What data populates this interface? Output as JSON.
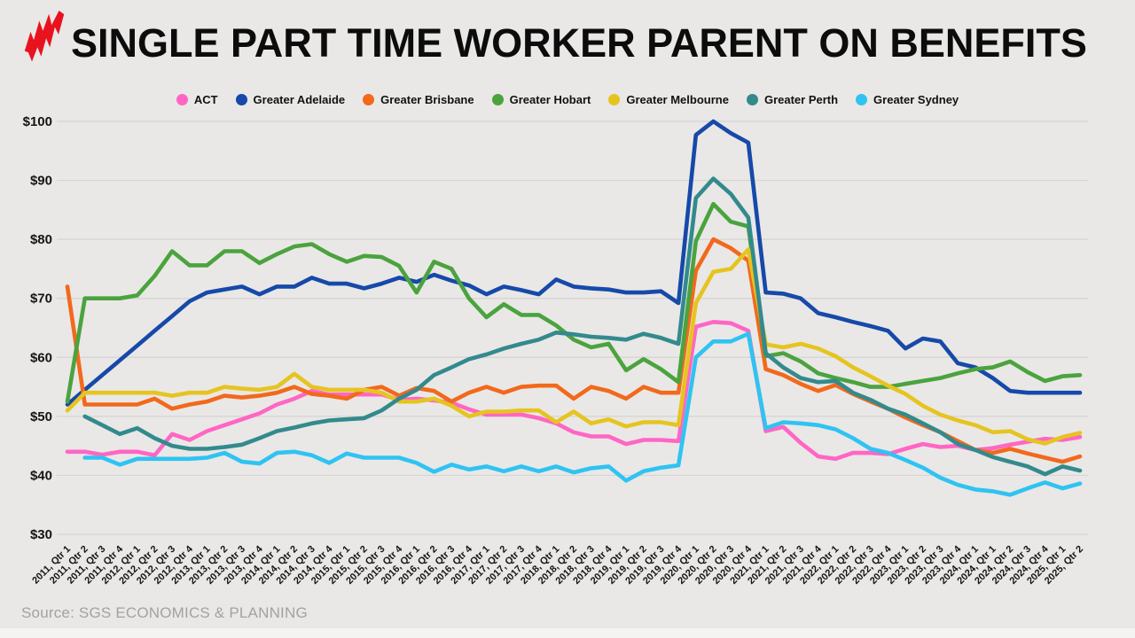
{
  "header": {
    "title": "SINGLE PART TIME WORKER PARENT ON BENEFITS"
  },
  "source": {
    "text": "Source: SGS ECONOMICS & PLANNING"
  },
  "colors": {
    "background": "#e9e8e6",
    "grid": "#d5d4d2",
    "axis_text": "#141414",
    "title_text": "#0c0c0c",
    "source_text": "#a3a2a0",
    "logo_red": "#e8131e",
    "bottom_strip": "#f4f3f1"
  },
  "chart_data": {
    "type": "line",
    "title": "SINGLE PART TIME WORKER PARENT ON BENEFITS",
    "xlabel": "",
    "ylabel": "",
    "ylim": [
      30,
      100
    ],
    "yticks": [
      30,
      40,
      50,
      60,
      70,
      80,
      90,
      100
    ],
    "ytick_format": "$",
    "grid": true,
    "legend_position": "top",
    "x": [
      "2011, Qtr 1",
      "2011, Qtr 2",
      "2011, Qtr 3",
      "2011, Qtr 4",
      "2012, Qtr 1",
      "2012, Qtr 2",
      "2012, Qtr 3",
      "2012, Qtr 4",
      "2013, Qtr 1",
      "2013, Qtr 2",
      "2013, Qtr 3",
      "2013, Qtr 4",
      "2014, Qtr 1",
      "2014, Qtr 2",
      "2014, Qtr 3",
      "2014, Qtr 4",
      "2015, Qtr 1",
      "2015, Qtr 2",
      "2015, Qtr 3",
      "2015, Qtr 4",
      "2016, Qtr 1",
      "2016, Qtr 2",
      "2016, Qtr 3",
      "2016, Qtr 4",
      "2017, Qtr 1",
      "2017, Qtr 2",
      "2017, Qtr 3",
      "2017, Qtr 4",
      "2018, Qtr 1",
      "2018, Qtr 2",
      "2018, Qtr 3",
      "2018, Qtr 4",
      "2019, Qtr 1",
      "2019, Qtr 2",
      "2019, Qtr 3",
      "2019, Qtr 4",
      "2020, Qtr 1",
      "2020, Qtr 2",
      "2020, Qtr 3",
      "2020, Qtr 4",
      "2021, Qtr 1",
      "2021, Qtr 2",
      "2021, Qtr 3",
      "2021, Qtr 4",
      "2022, Qtr 1",
      "2022, Qtr 2",
      "2022, Qtr 3",
      "2022, Qtr 4",
      "2023, Qtr 1",
      "2023, Qtr 2",
      "2023, Qtr 3",
      "2023, Qtr 4",
      "2024, Qtr 1",
      "2024, Qtr 1",
      "2024, Qtr 2",
      "2024, Qtr 3",
      "2024, Qtr 4",
      "2025, Qtr 1",
      "2025, Qtr 2"
    ],
    "series": [
      {
        "name": "ACT",
        "color": "#ff66c4",
        "values": [
          44,
          44,
          43.5,
          44,
          44,
          43.4,
          47,
          46,
          47.5,
          48.5,
          49.5,
          50.5,
          52,
          53,
          54.3,
          53.7,
          53.7,
          53.7,
          53.7,
          52.8,
          53,
          52.7,
          52.3,
          51.2,
          50.3,
          50.3,
          50.3,
          49.7,
          48.8,
          47.3,
          46.6,
          46.6,
          45.3,
          46,
          46,
          45.8,
          65.2,
          66,
          65.8,
          64.5,
          47.5,
          48.2,
          45.5,
          43.2,
          42.8,
          43.8,
          43.8,
          43.6,
          44.5,
          45.3,
          44.8,
          45,
          44.3,
          44.6,
          45.2,
          45.7,
          46.2,
          46,
          46.5
        ]
      },
      {
        "name": "Greater Adelaide",
        "color": "#1649a9",
        "values": [
          52,
          54.5,
          57,
          59.5,
          62,
          64.5,
          67,
          69.5,
          71,
          71.5,
          72,
          70.7,
          72,
          72,
          73.5,
          72.5,
          72.5,
          71.7,
          72.5,
          73.5,
          72.8,
          74,
          73,
          72.2,
          70.7,
          72,
          71.4,
          70.7,
          73.2,
          72,
          71.7,
          71.5,
          71,
          71,
          71.2,
          69.2,
          97.7,
          100,
          98,
          96.4,
          71,
          70.8,
          70,
          67.5,
          66.8,
          66,
          65.3,
          64.5,
          61.5,
          63.2,
          62.7,
          59,
          58.3,
          56.5,
          54.3,
          54,
          54,
          54,
          54
        ]
      },
      {
        "name": "Greater Brisbane",
        "color": "#f2691c",
        "values": [
          72,
          52,
          52,
          52,
          52,
          53,
          51.3,
          52,
          52.5,
          53.5,
          53.2,
          53.5,
          54,
          55,
          53.8,
          53.5,
          53,
          54.5,
          55,
          53.5,
          54.8,
          54.3,
          52.5,
          54,
          55,
          54,
          55,
          55.2,
          55.2,
          53,
          55,
          54.3,
          53,
          55,
          54,
          54,
          74.7,
          80,
          78.5,
          76.4,
          58,
          57,
          55.5,
          54.3,
          55.3,
          53.8,
          52.5,
          51.3,
          49.8,
          48.5,
          47.3,
          45.8,
          44.3,
          43.8,
          44.5,
          43.7,
          43,
          42.3,
          43.2
        ]
      },
      {
        "name": "Greater Hobart",
        "color": "#4ba33e",
        "values": [
          52.5,
          70,
          70,
          70,
          70.5,
          73.8,
          78,
          75.6,
          75.6,
          78,
          78,
          76,
          77.5,
          78.8,
          79.2,
          77.5,
          76.2,
          77.2,
          77,
          75.5,
          71,
          76.2,
          75,
          70,
          66.8,
          69,
          67.2,
          67.2,
          65.4,
          63,
          61.7,
          62.3,
          57.8,
          59.7,
          58,
          55.8,
          79.7,
          86,
          83,
          82.2,
          60.2,
          60.7,
          59.3,
          57.3,
          56.5,
          55.8,
          55,
          55,
          55.5,
          56,
          56.5,
          57.3,
          58,
          58.3,
          59.3,
          57.5,
          56,
          56.8,
          57
        ]
      },
      {
        "name": "Greater Melbourne",
        "color": "#e6c420",
        "values": [
          51,
          54,
          54,
          54,
          54,
          54,
          53.5,
          54,
          54,
          55,
          54.7,
          54.5,
          55,
          57.2,
          55,
          54.5,
          54.5,
          54.5,
          54,
          52.5,
          52.5,
          53,
          51.8,
          50,
          50.8,
          50.8,
          51,
          51,
          49,
          50.8,
          48.8,
          49.5,
          48.3,
          49,
          49,
          48.5,
          69.2,
          74.5,
          75,
          78.3,
          62.2,
          61.7,
          62.3,
          61.5,
          60.2,
          58.3,
          56.8,
          55.2,
          53.8,
          51.8,
          50.3,
          49.3,
          48.5,
          47.3,
          47.5,
          46.1,
          45.4,
          46.5,
          47.2
        ]
      },
      {
        "name": "Greater Perth",
        "color": "#338a8d",
        "values": [
          null,
          50,
          48.5,
          47,
          48,
          46.3,
          45,
          44.5,
          44.5,
          44.8,
          45.2,
          46.3,
          47.5,
          48.1,
          48.8,
          49.3,
          49.5,
          49.7,
          51,
          53,
          54.5,
          57,
          58.3,
          59.7,
          60.5,
          61.5,
          62.3,
          63,
          64.2,
          63.9,
          63.5,
          63.3,
          63,
          64,
          63.3,
          62.3,
          87,
          90.3,
          87.7,
          83.7,
          60.7,
          58.3,
          56.5,
          55.8,
          56,
          54,
          52.8,
          51.3,
          50.3,
          48.8,
          47.3,
          45.3,
          44.3,
          43.1,
          42.3,
          41.5,
          40.2,
          41.5,
          40.8
        ]
      },
      {
        "name": "Greater Sydney",
        "color": "#2fc3f2",
        "values": [
          null,
          43,
          43,
          41.8,
          42.8,
          42.8,
          42.8,
          42.8,
          43,
          43.8,
          42.3,
          42,
          43.8,
          44,
          43.4,
          42.1,
          43.7,
          43,
          43,
          43,
          42.1,
          40.6,
          41.8,
          41,
          41.5,
          40.7,
          41.5,
          40.7,
          41.5,
          40.5,
          41.2,
          41.5,
          39.1,
          40.7,
          41.3,
          41.7,
          60,
          62.7,
          62.7,
          64,
          48,
          49,
          48.8,
          48.5,
          47.8,
          46.3,
          44.5,
          43.8,
          42.6,
          41.3,
          39.6,
          38.4,
          37.6,
          37.3,
          36.7,
          37.8,
          38.8,
          37.8,
          38.6
        ]
      }
    ]
  }
}
